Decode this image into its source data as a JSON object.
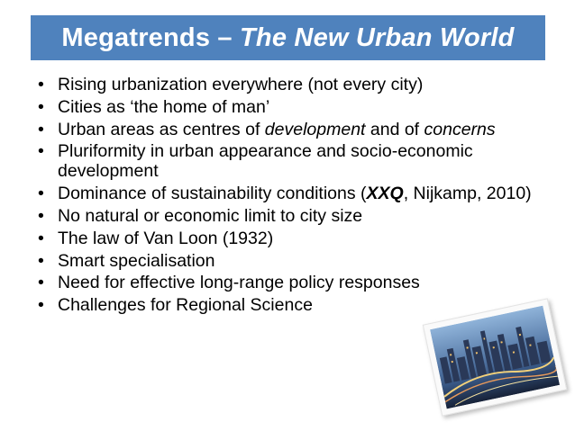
{
  "slide": {
    "title_plain": "Megatrends – ",
    "title_italic": "The New Urban World"
  },
  "bullets": [
    {
      "text": "Rising urbanization everywhere (not every city)"
    },
    {
      "text": "Cities as ‘the home of man’"
    },
    {
      "pre": "Urban areas as centres of ",
      "em1": "development",
      "mid": " and of ",
      "em2": "concerns"
    },
    {
      "text": "Pluriformity in urban appearance and socio-economic development"
    },
    {
      "pre": "Dominance of sustainability conditions (",
      "strong": "XXQ",
      "post": ", Nijkamp, 2010)"
    },
    {
      "text": "No natural or economic limit to city size"
    },
    {
      "text": "The law of Van Loon (1932)"
    },
    {
      "text": "Smart specialisation"
    },
    {
      "text": "Need for effective long-range policy responses"
    },
    {
      "text": "Challenges for Regional Science"
    }
  ],
  "bullet_glyph": "•",
  "colors": {
    "title_background": "#4f82bd",
    "title_text": "#ffffff",
    "body_text": "#000000"
  },
  "photo": {
    "icon": "city-skyline-photo"
  }
}
